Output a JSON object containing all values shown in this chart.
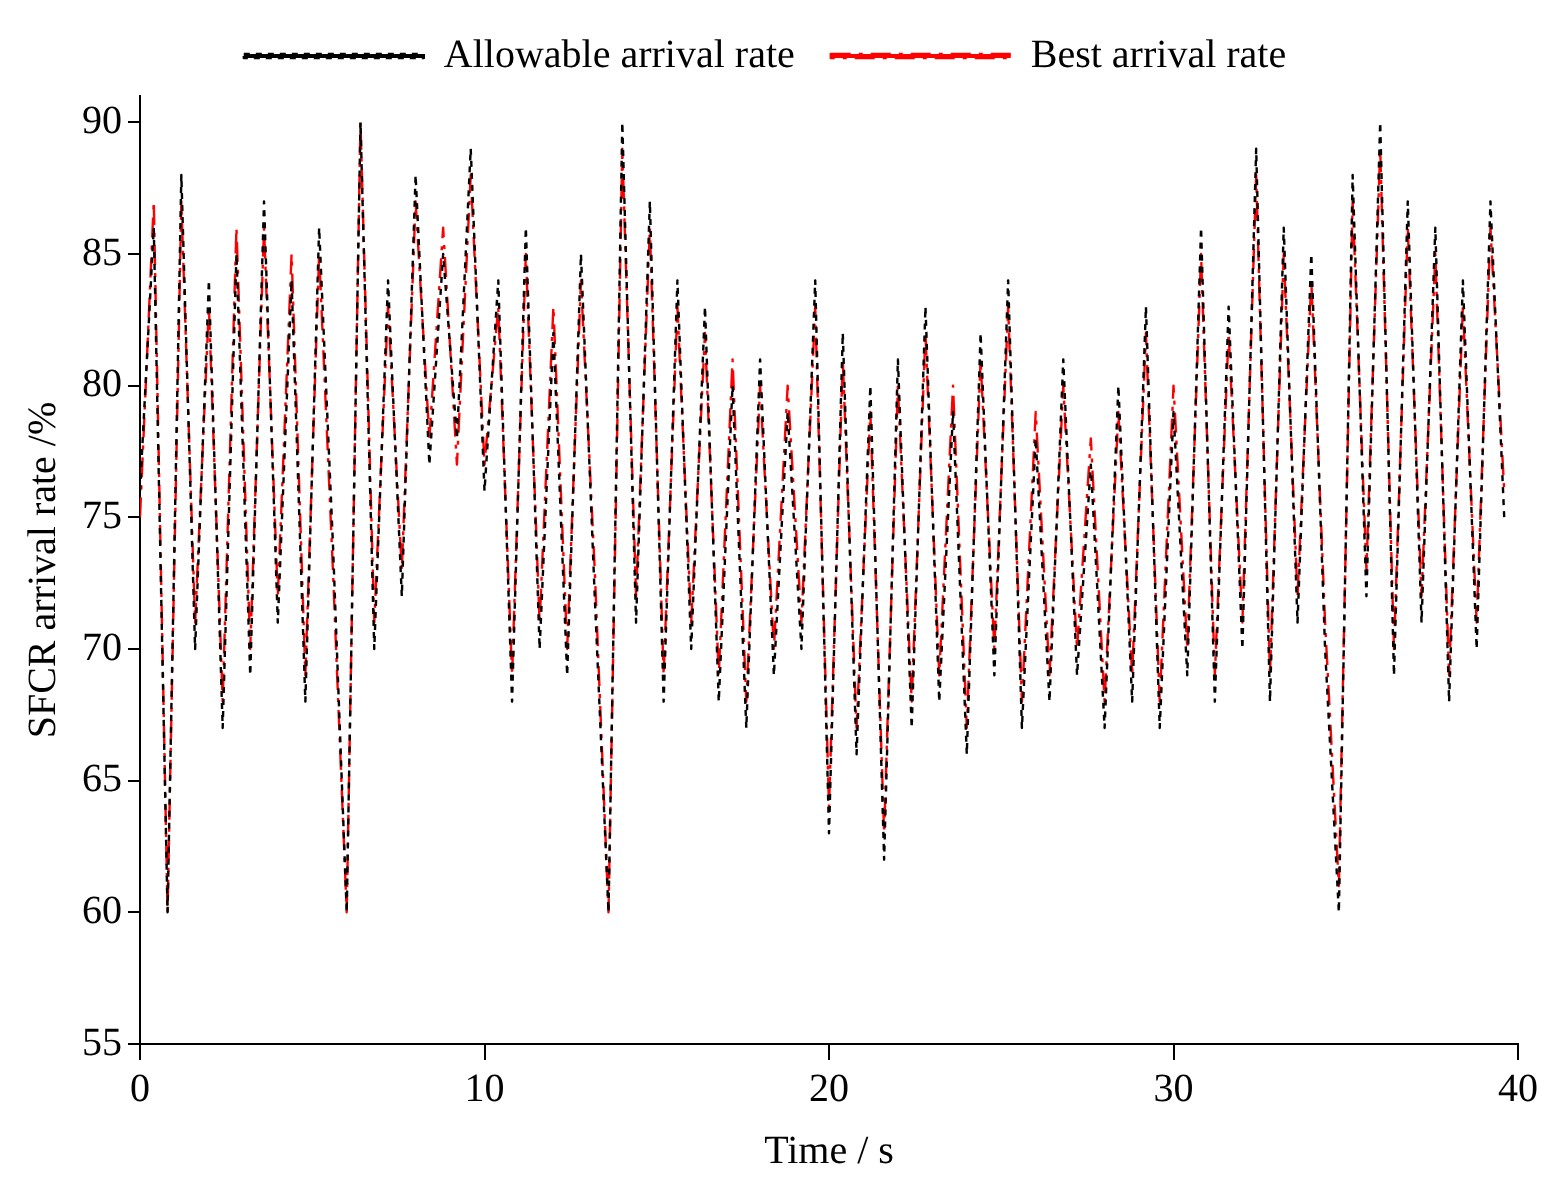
{
  "chart_data": {
    "type": "line",
    "xlabel": "Time / s",
    "ylabel": "SFCR arrival rate /%",
    "xlim": [
      0,
      40
    ],
    "xticks": [
      0,
      10,
      20,
      30,
      40
    ],
    "ylim": [
      55,
      91
    ],
    "yticks": [
      55,
      60,
      65,
      70,
      75,
      80,
      85,
      90
    ],
    "grid": false,
    "legend": "top",
    "marker": "none",
    "x": [
      0,
      0.4,
      0.8,
      1.2,
      1.6,
      2.0,
      2.4,
      2.8,
      3.2,
      3.6,
      4.0,
      4.4,
      4.8,
      5.2,
      5.6,
      6.0,
      6.4,
      6.8,
      7.2,
      7.6,
      8.0,
      8.4,
      8.8,
      9.2,
      9.6,
      10.0,
      10.4,
      10.8,
      11.2,
      11.6,
      12.0,
      12.4,
      12.8,
      13.2,
      13.6,
      14.0,
      14.4,
      14.8,
      15.2,
      15.6,
      16.0,
      16.4,
      16.8,
      17.2,
      17.6,
      18.0,
      18.4,
      18.8,
      19.2,
      19.6,
      20.0,
      20.4,
      20.8,
      21.2,
      21.6,
      22.0,
      22.4,
      22.8,
      23.2,
      23.6,
      24.0,
      24.4,
      24.8,
      25.2,
      25.6,
      26.0,
      26.4,
      26.8,
      27.2,
      27.6,
      28.0,
      28.4,
      28.8,
      29.2,
      29.6,
      30.0,
      30.4,
      30.8,
      31.2,
      31.6,
      32.0,
      32.4,
      32.8,
      33.2,
      33.6,
      34.0,
      34.4,
      34.8,
      35.2,
      35.6,
      36.0,
      36.4,
      36.8,
      37.2,
      37.6,
      38.0,
      38.4,
      38.8,
      39.2,
      39.6
    ],
    "series": [
      {
        "name": "Allowable arrival rate",
        "color": "#000000",
        "line_style": "dotted",
        "values": [
          76,
          86,
          60,
          88,
          70,
          84,
          67,
          85,
          69,
          87,
          71,
          84,
          68,
          86,
          74,
          60,
          90,
          70,
          84,
          72,
          88,
          77,
          85,
          78,
          89,
          76,
          84,
          68,
          86,
          70,
          82,
          69,
          85,
          72,
          60,
          90,
          71,
          87,
          68,
          84,
          70,
          83,
          68,
          80,
          67,
          81,
          69,
          79,
          70,
          84,
          63,
          82,
          66,
          80,
          62,
          81,
          67,
          83,
          68,
          79,
          66,
          82,
          69,
          84,
          67,
          78,
          68,
          81,
          69,
          77,
          67,
          80,
          68,
          83,
          67,
          79,
          69,
          86,
          68,
          83,
          70,
          89,
          68,
          86,
          71,
          85,
          70,
          60,
          88,
          72,
          90,
          69,
          87,
          71,
          86,
          68,
          84,
          70,
          87,
          75
        ]
      },
      {
        "name": "Best arrival rate",
        "color": "#ff0000",
        "line_style": "dashed",
        "values": [
          75,
          87,
          60,
          87,
          71,
          83,
          68,
          86,
          70,
          86,
          72,
          85,
          69,
          85,
          73,
          60,
          90,
          71,
          83,
          73,
          87,
          78,
          86,
          77,
          88,
          77,
          83,
          69,
          85,
          71,
          83,
          70,
          84,
          73,
          60,
          89,
          72,
          86,
          69,
          83,
          71,
          82,
          69,
          81,
          68,
          80,
          70,
          80,
          71,
          83,
          64,
          81,
          67,
          79,
          63,
          80,
          68,
          82,
          69,
          80,
          67,
          81,
          70,
          83,
          68,
          79,
          69,
          80,
          70,
          78,
          68,
          79,
          69,
          82,
          68,
          80,
          70,
          85,
          69,
          82,
          71,
          88,
          69,
          85,
          72,
          84,
          71,
          61,
          87,
          73,
          89,
          70,
          86,
          72,
          85,
          69,
          83,
          71,
          86,
          76
        ]
      }
    ]
  }
}
